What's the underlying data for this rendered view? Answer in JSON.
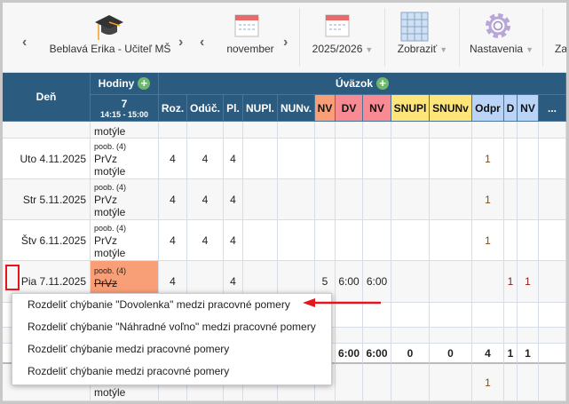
{
  "toolbar": {
    "teacher": "Beblavá Erika - Učiteľ MŠ",
    "month": "november",
    "year": "2025/2026",
    "view": "Zobraziť",
    "settings": "Nastavenia",
    "cut": "Za"
  },
  "header": {
    "day": "Deň",
    "hours": "Hodiny",
    "workload": "Úväzok",
    "hour_num": "7",
    "hour_time": "14:15 - 15:00",
    "cols": [
      "Roz.",
      "Odúč.",
      "Pl.",
      "NUPl.",
      "NUNv.",
      "NV",
      "DV",
      "NV",
      "SNUPl",
      "SNUNv",
      "Odpr",
      "D",
      "NV",
      "..."
    ]
  },
  "col_colors": {
    "NV1": "#f99f77",
    "DV": "#f78a93",
    "NV2": "#f78a93",
    "SNU": "#fde57a",
    "Odpr": "#b9d4f7"
  },
  "rows": [
    {
      "day": "",
      "tag": "",
      "subject": "",
      "group": "motýle",
      "vals": [
        "",
        "",
        "",
        "",
        "",
        "",
        "",
        "",
        "",
        "",
        "",
        "",
        "",
        ""
      ]
    },
    {
      "day": "Uto 4.11.2025",
      "tag": "poob. (4)",
      "subject": "PrVz",
      "group": "motýle",
      "vals": [
        "4",
        "4",
        "4",
        "",
        "",
        "",
        "",
        "",
        "",
        "",
        "1",
        "",
        "",
        ""
      ]
    },
    {
      "day": "Str 5.11.2025",
      "tag": "poob. (4)",
      "subject": "PrVz",
      "group": "motýle",
      "vals": [
        "4",
        "4",
        "4",
        "",
        "",
        "",
        "",
        "",
        "",
        "",
        "1",
        "",
        "",
        ""
      ]
    },
    {
      "day": "Štv 6.11.2025",
      "tag": "poob. (4)",
      "subject": "PrVz",
      "group": "motýle",
      "vals": [
        "4",
        "4",
        "4",
        "",
        "",
        "",
        "",
        "",
        "",
        "",
        "1",
        "",
        "",
        ""
      ]
    },
    {
      "day": "Pia 7.11.2025",
      "tag": "poob. (4)",
      "subject": "PrVz",
      "group": "",
      "vals": [
        "4",
        "",
        "4",
        "",
        "",
        "5",
        "6:00",
        "6:00",
        "",
        "",
        "",
        "1",
        "1",
        ""
      ]
    },
    {
      "day": "",
      "tag": "",
      "subject": "",
      "group": "",
      "vals": [
        "",
        "",
        "",
        "",
        "",
        "",
        "",
        "",
        "",
        "",
        "",
        "",
        "",
        ""
      ]
    },
    {
      "day": "",
      "tag": "",
      "subject": "",
      "group": "",
      "vals": [
        "",
        "",
        "",
        "",
        "",
        "",
        "",
        "",
        "",
        "",
        "",
        "",
        "",
        ""
      ]
    },
    {
      "day": "",
      "tag": "",
      "subject": "",
      "group": "",
      "vals": [
        "",
        "",
        "",
        "",
        "",
        "",
        "6:00",
        "6:00",
        "0",
        "0",
        "4",
        "1",
        "1",
        ""
      ]
    },
    {
      "day": "",
      "tag": "",
      "subject": "",
      "group": "motýle",
      "vals": [
        "",
        "",
        "",
        "",
        "",
        "",
        "",
        "",
        "",
        "",
        "1",
        "",
        "",
        ""
      ]
    }
  ],
  "menu": {
    "items": [
      "Rozdeliť chýbanie \"Dovolenka\" medzi pracovné pomery",
      "Rozdeliť chýbanie \"Náhradné voľno\" medzi pracovné pomery",
      "Rozdeliť chýbanie medzi pracovné pomery",
      "Rozdeliť chýbanie medzi pracovné pomery"
    ]
  },
  "annotation_color": "#e8141b"
}
